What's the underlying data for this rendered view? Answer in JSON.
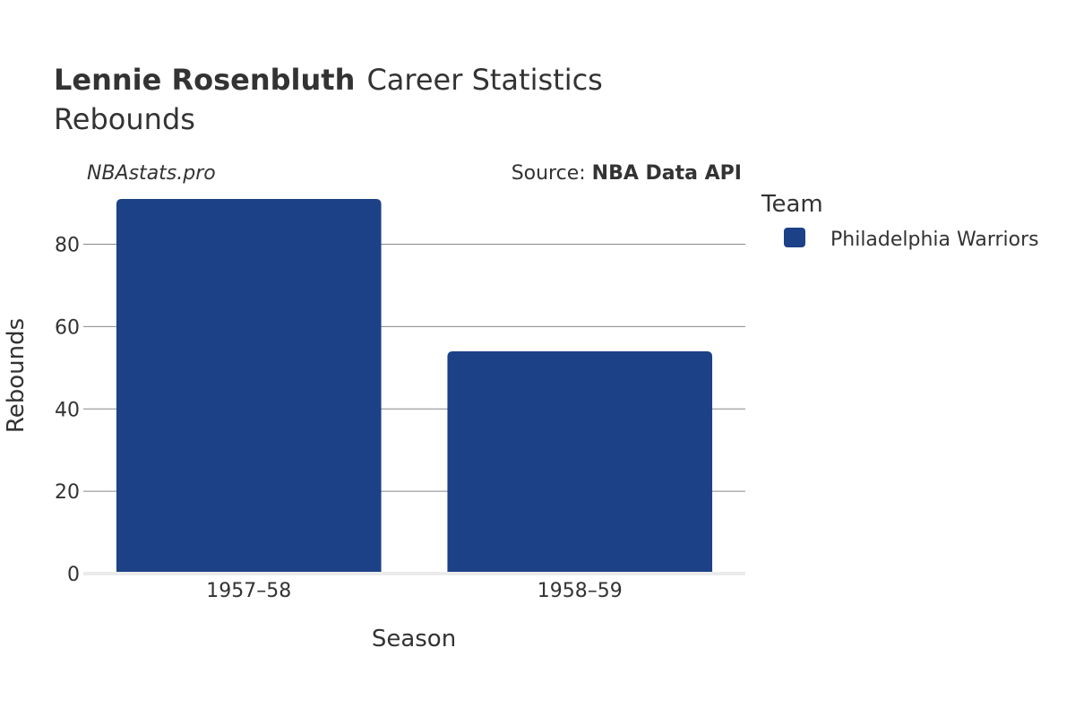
{
  "header": {
    "player_name": "Lennie Rosenbluth",
    "title_rest": "Career Statistics",
    "subtitle": "Rebounds"
  },
  "watermark": "NBAstats.pro",
  "source": {
    "prefix": "Source: ",
    "name": "NBA Data API"
  },
  "legend": {
    "title": "Team",
    "items": [
      {
        "label": "Philadelphia Warriors",
        "color": "#1c4187"
      }
    ]
  },
  "chart_data": {
    "type": "bar",
    "categories": [
      "1957–58",
      "1958–59"
    ],
    "series": [
      {
        "name": "Philadelphia Warriors",
        "values": [
          91,
          54
        ],
        "color": "#1c4187"
      }
    ],
    "xlabel": "Season",
    "ylabel": "Rebounds",
    "ylim": [
      0,
      91
    ],
    "yticks": [
      0,
      20,
      40,
      60,
      80
    ],
    "grid": true,
    "legend_position": "right"
  }
}
